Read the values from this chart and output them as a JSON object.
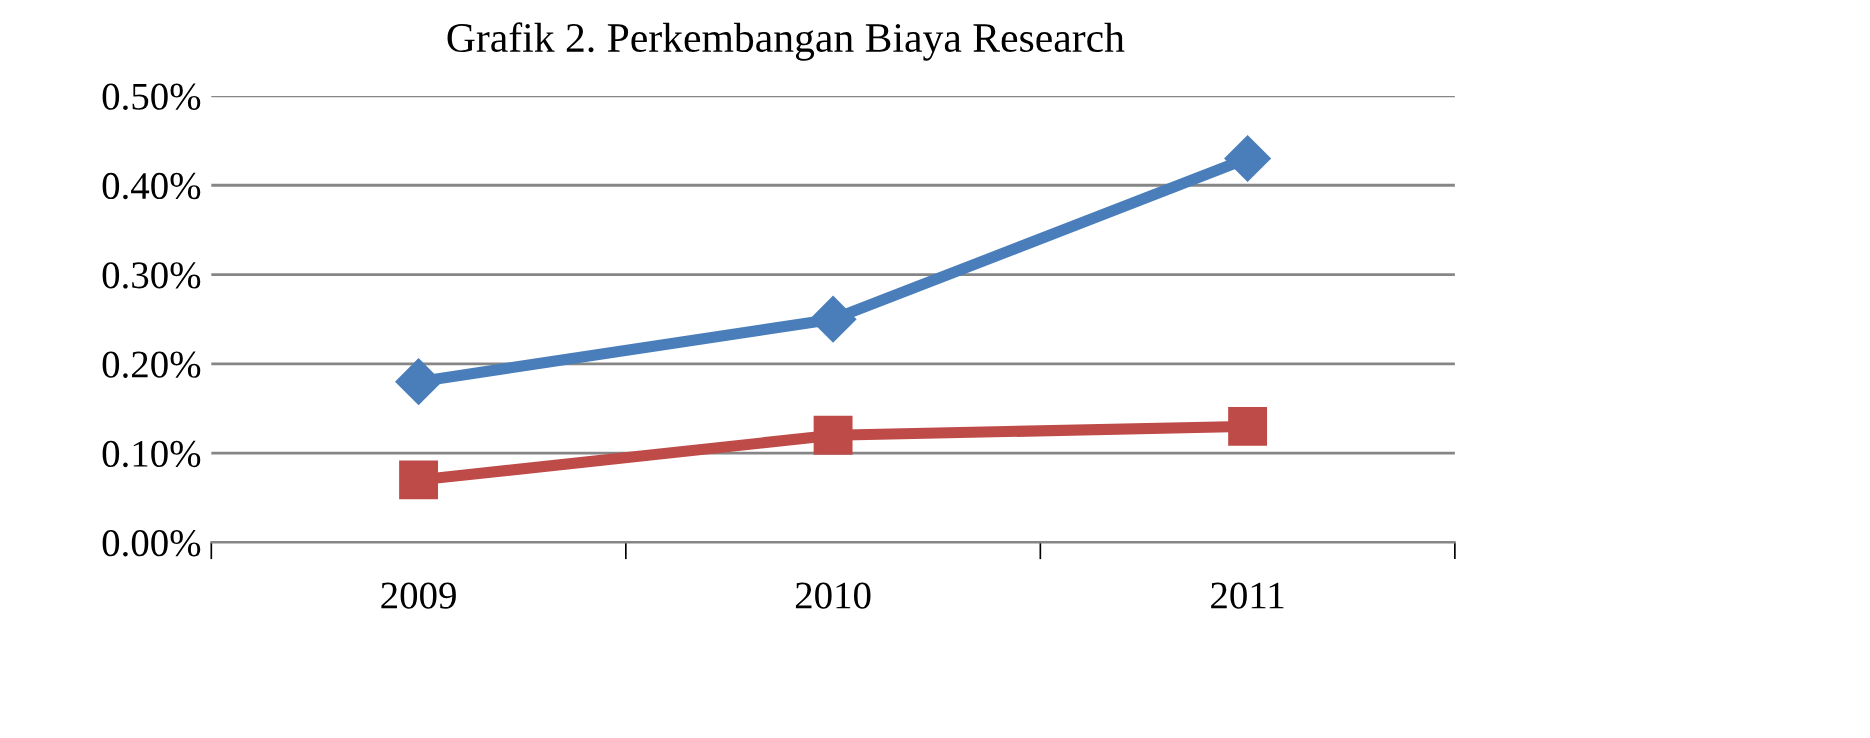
{
  "chart_data": {
    "type": "line",
    "title": "Grafik 2. Perkembangan Biaya Research",
    "categories": [
      "2009",
      "2010",
      "2011"
    ],
    "series": [
      {
        "color": "#4a7ebb",
        "marker": "diamond",
        "values": [
          0.18,
          0.25,
          0.43
        ]
      },
      {
        "color": "#be4b48",
        "marker": "square",
        "values": [
          0.07,
          0.12,
          0.13
        ]
      }
    ],
    "ylim": [
      0,
      0.5
    ],
    "yticks": [
      {
        "value": 0,
        "label": "0.00%"
      },
      {
        "value": 0.1,
        "label": "0.10%"
      },
      {
        "value": 0.2,
        "label": "0.20%"
      },
      {
        "value": 0.3,
        "label": "0.30%"
      },
      {
        "value": 0.4,
        "label": "0.40%"
      },
      {
        "value": 0.5,
        "label": "0.50%"
      }
    ],
    "grid": "y",
    "line_style": "solid"
  }
}
